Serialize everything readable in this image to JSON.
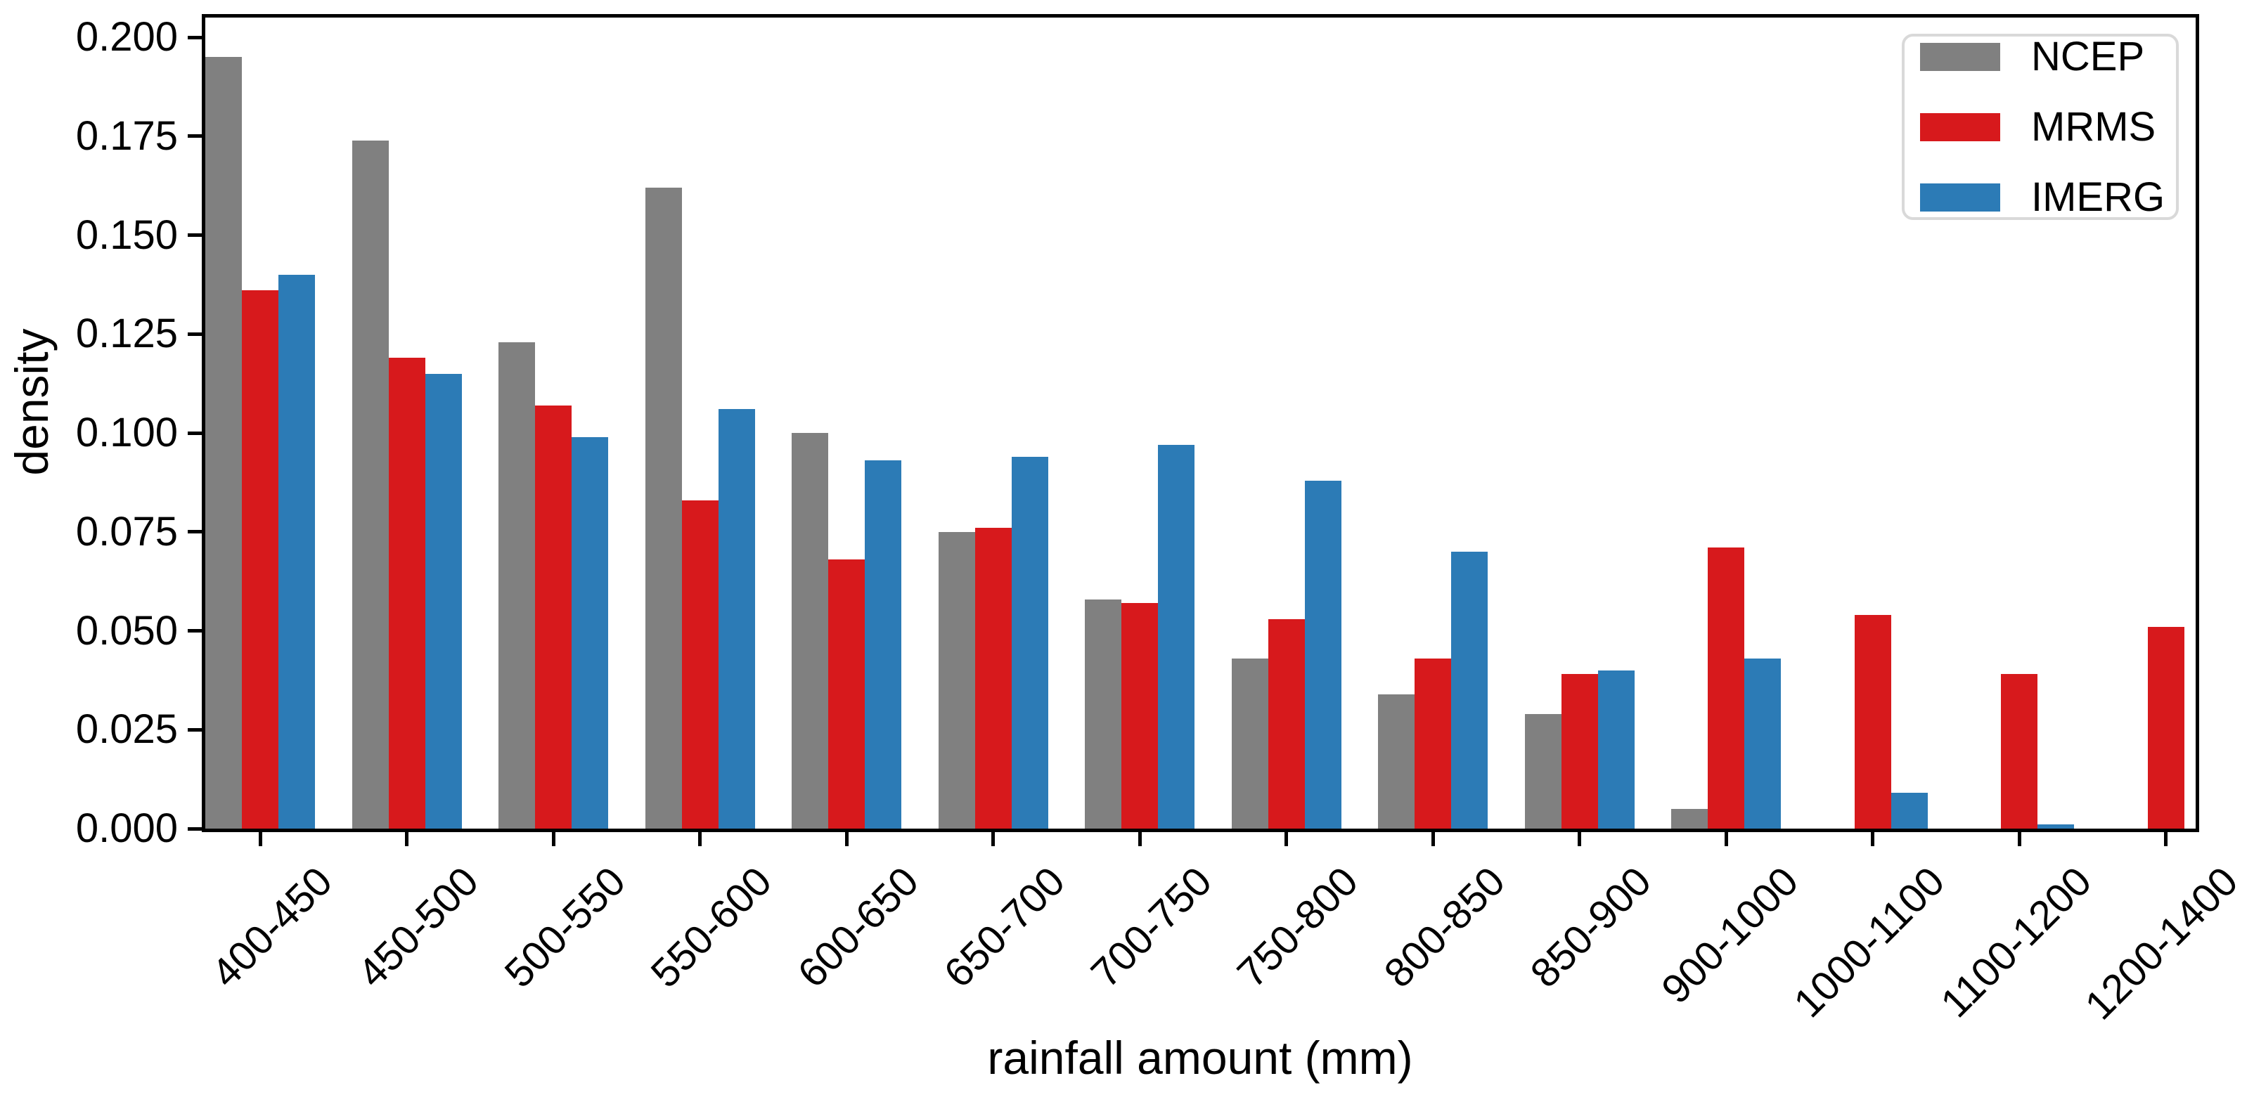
{
  "chart_data": {
    "type": "bar",
    "title": "",
    "xlabel": "rainfall amount (mm)",
    "ylabel": "density",
    "categories": [
      "400-450",
      "450-500",
      "500-550",
      "550-600",
      "600-650",
      "650-700",
      "700-750",
      "750-800",
      "800-850",
      "850-900",
      "900-1000",
      "1000-1100",
      "1100-1200",
      "1200-1400"
    ],
    "series": [
      {
        "name": "NCEP",
        "color": "#808080",
        "values": [
          0.195,
          0.174,
          0.123,
          0.162,
          0.1,
          0.075,
          0.058,
          0.043,
          0.034,
          0.029,
          0.005,
          0.0,
          0.0,
          0.0
        ]
      },
      {
        "name": "MRMS",
        "color": "#d7191c",
        "values": [
          0.136,
          0.119,
          0.107,
          0.083,
          0.068,
          0.076,
          0.057,
          0.053,
          0.043,
          0.039,
          0.071,
          0.054,
          0.039,
          0.051
        ]
      },
      {
        "name": "IMERG",
        "color": "#2c7bb6",
        "values": [
          0.14,
          0.115,
          0.099,
          0.106,
          0.093,
          0.094,
          0.097,
          0.088,
          0.07,
          0.04,
          0.043,
          0.009,
          0.001,
          0.0
        ]
      }
    ],
    "ylim": [
      0,
      0.205
    ],
    "yticks": [
      0.0,
      0.025,
      0.05,
      0.075,
      0.1,
      0.125,
      0.15,
      0.175,
      0.2
    ],
    "ytick_labels": [
      "0.000",
      "0.025",
      "0.050",
      "0.075",
      "0.100",
      "0.125",
      "0.150",
      "0.175",
      "0.200"
    ],
    "grid": false,
    "legend_position": "upper right",
    "axis_color": "#000000",
    "text_color": "#000000"
  }
}
